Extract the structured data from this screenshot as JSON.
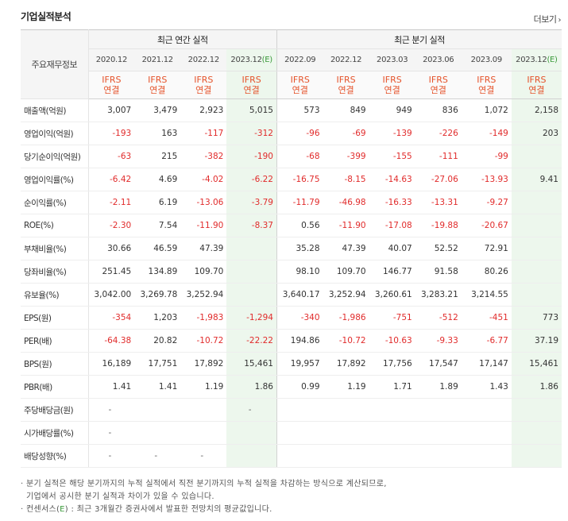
{
  "header": {
    "title": "기업실적분석",
    "more_label": "더보기"
  },
  "table": {
    "row_header_label": "주요재무정보",
    "annual_group_label": "최근 연간 실적",
    "quarterly_group_label": "최근 분기 실적",
    "periods": [
      "2020.12",
      "2021.12",
      "2022.12",
      "2023.12",
      "2022.09",
      "2022.12",
      "2023.03",
      "2023.06",
      "2023.09",
      "2023.12"
    ],
    "estimate_suffix": "(E)",
    "ifrs_line1": "IFRS",
    "ifrs_line2": "연결",
    "rows": [
      {
        "label": "매출액(억원)",
        "values": [
          "3,007",
          "3,479",
          "2,923",
          "5,015",
          "573",
          "849",
          "949",
          "836",
          "1,072",
          "2,158"
        ]
      },
      {
        "label": "영업이익(억원)",
        "values": [
          "-193",
          "163",
          "-117",
          "-312",
          "-96",
          "-69",
          "-139",
          "-226",
          "-149",
          "203"
        ]
      },
      {
        "label": "당기순이익(억원)",
        "values": [
          "-63",
          "215",
          "-382",
          "-190",
          "-68",
          "-399",
          "-155",
          "-111",
          "-99",
          ""
        ]
      },
      {
        "label": "영업이익률(%)",
        "values": [
          "-6.42",
          "4.69",
          "-4.02",
          "-6.22",
          "-16.75",
          "-8.15",
          "-14.63",
          "-27.06",
          "-13.93",
          "9.41"
        ]
      },
      {
        "label": "순이익률(%)",
        "values": [
          "-2.11",
          "6.19",
          "-13.06",
          "-3.79",
          "-11.79",
          "-46.98",
          "-16.33",
          "-13.31",
          "-9.27",
          ""
        ]
      },
      {
        "label": "ROE(%)",
        "values": [
          "-2.30",
          "7.54",
          "-11.90",
          "-8.37",
          "0.56",
          "-11.90",
          "-17.08",
          "-19.88",
          "-20.67",
          ""
        ]
      },
      {
        "label": "부채비율(%)",
        "values": [
          "30.66",
          "46.59",
          "47.39",
          "",
          "35.28",
          "47.39",
          "40.07",
          "52.52",
          "72.91",
          ""
        ]
      },
      {
        "label": "당좌비율(%)",
        "values": [
          "251.45",
          "134.89",
          "109.70",
          "",
          "98.10",
          "109.70",
          "146.77",
          "91.58",
          "80.26",
          ""
        ]
      },
      {
        "label": "유보율(%)",
        "values": [
          "3,042.00",
          "3,269.78",
          "3,252.94",
          "",
          "3,640.17",
          "3,252.94",
          "3,260.61",
          "3,283.21",
          "3,214.55",
          ""
        ]
      },
      {
        "label": "EPS(원)",
        "values": [
          "-354",
          "1,203",
          "-1,983",
          "-1,294",
          "-340",
          "-1,986",
          "-751",
          "-512",
          "-451",
          "773"
        ]
      },
      {
        "label": "PER(배)",
        "values": [
          "-64.38",
          "20.82",
          "-10.72",
          "-22.22",
          "194.86",
          "-10.72",
          "-10.63",
          "-9.33",
          "-6.77",
          "37.19"
        ]
      },
      {
        "label": "BPS(원)",
        "values": [
          "16,189",
          "17,751",
          "17,892",
          "15,461",
          "19,957",
          "17,892",
          "17,756",
          "17,547",
          "17,147",
          "15,461"
        ]
      },
      {
        "label": "PBR(배)",
        "values": [
          "1.41",
          "1.41",
          "1.19",
          "1.86",
          "0.99",
          "1.19",
          "1.71",
          "1.89",
          "1.43",
          "1.86"
        ]
      },
      {
        "label": "주당배당금(원)",
        "values": [
          "-",
          "",
          "",
          "-",
          "",
          "",
          "",
          "",
          "",
          ""
        ]
      },
      {
        "label": "시가배당률(%)",
        "values": [
          "-",
          "",
          "",
          "",
          "",
          "",
          "",
          "",
          "",
          ""
        ]
      },
      {
        "label": "배당성향(%)",
        "values": [
          "-",
          "-",
          "-",
          "",
          "",
          "",
          "",
          "",
          "",
          ""
        ]
      }
    ]
  },
  "notes": {
    "note1_line1": "· 분기 실적은 해당 분기까지의 누적 실적에서 직전 분기까지의 누적 실적을 차감하는 방식으로 계산되므로,",
    "note1_line2": "기업에서 공시한 분기 실적과 차이가 있을 수 있습니다.",
    "note2_prefix": "· 컨센서스(",
    "note2_e": "E",
    "note2_suffix": ") : 최근 3개월간 증권사에서 발표한 전망치의 평균값입니다."
  },
  "colors": {
    "negative": "#e12b2b",
    "ifrs": "#e5532b",
    "estimate_bg": "#edf7ed",
    "estimate_mark": "#3a9a3a"
  }
}
